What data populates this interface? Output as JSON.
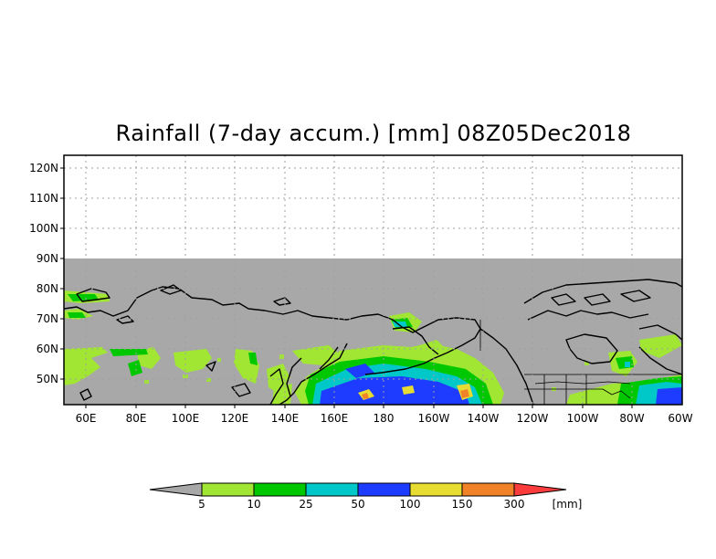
{
  "title": "Rainfall (7-day accum.) [mm] 08Z05Dec2018",
  "latitude_labels": [
    "120N",
    "110N",
    "100N",
    "90N",
    "80N",
    "70N",
    "60N",
    "50N"
  ],
  "longitude_labels": [
    "60E",
    "80E",
    "100E",
    "120E",
    "140E",
    "160E",
    "180",
    "160W",
    "140W",
    "120W",
    "100W",
    "80W",
    "60W"
  ],
  "legend": {
    "unit": "[mm]",
    "thresholds": [
      "5",
      "10",
      "25",
      "50",
      "100",
      "150",
      "300"
    ],
    "colors": [
      "#a8a8a8",
      "#a0e632",
      "#00c800",
      "#00c8c8",
      "#1e3cff",
      "#e6dc32",
      "#f08228",
      "#fa3c3c"
    ]
  },
  "map": {
    "no_data_color": "#a8a8a8",
    "coastline_color": "#000000",
    "grid": "dotted"
  }
}
